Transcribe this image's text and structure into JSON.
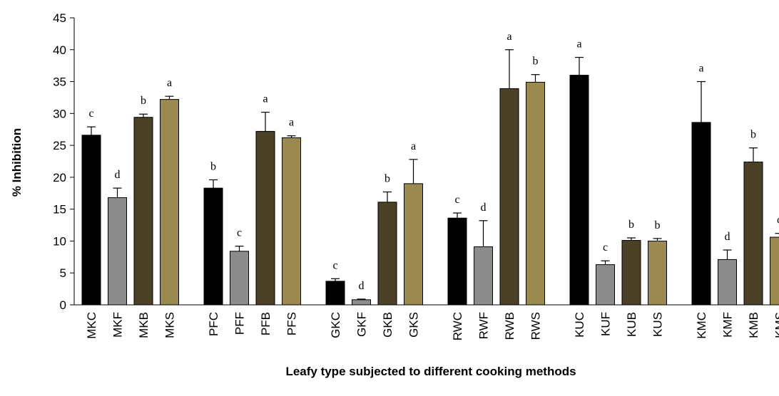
{
  "chart_data": {
    "type": "bar",
    "title": "",
    "xlabel": "Leafy type subjected to different cooking methods",
    "ylabel": "% Inhibition",
    "ylim": [
      0,
      45
    ],
    "yticks": [
      0,
      5,
      10,
      15,
      20,
      25,
      30,
      35,
      40,
      45
    ],
    "grid": false,
    "legend": "none",
    "colors": {
      "C": "#000000",
      "F": "#8c8c8c",
      "B": "#4a4127",
      "S": "#9a8a50"
    },
    "groups": [
      {
        "categories": [
          "MKC",
          "MKF",
          "MKB",
          "MKS"
        ],
        "values": [
          26.6,
          16.8,
          29.4,
          32.2
        ],
        "errors": [
          1.3,
          1.5,
          0.5,
          0.5
        ],
        "labels": [
          "c",
          "d",
          "b",
          "a"
        ]
      },
      {
        "categories": [
          "PFC",
          "PFF",
          "PFB",
          "PFS"
        ],
        "values": [
          18.3,
          8.4,
          27.2,
          26.2
        ],
        "errors": [
          1.3,
          0.8,
          3.0,
          0.3
        ],
        "labels": [
          "b",
          "c",
          "a",
          "a"
        ]
      },
      {
        "categories": [
          "GKC",
          "GKF",
          "GKB",
          "GKS"
        ],
        "values": [
          3.7,
          0.8,
          16.1,
          19.0
        ],
        "errors": [
          0.4,
          0.1,
          1.6,
          3.8
        ],
        "labels": [
          "c",
          "d",
          "b",
          "a"
        ]
      },
      {
        "categories": [
          "RWC",
          "RWF",
          "RWB",
          "RWS"
        ],
        "values": [
          13.6,
          9.1,
          33.9,
          34.9
        ],
        "errors": [
          0.8,
          4.1,
          6.1,
          1.2
        ],
        "labels": [
          "c",
          "d",
          "a",
          "b"
        ]
      },
      {
        "categories": [
          "KUC",
          "KUF",
          "KUB",
          "KUS"
        ],
        "values": [
          36.0,
          6.3,
          10.1,
          10.0
        ],
        "errors": [
          2.8,
          0.6,
          0.4,
          0.4
        ],
        "labels": [
          "a",
          "c",
          "b",
          "b"
        ]
      },
      {
        "categories": [
          "KMC",
          "KMF",
          "KMB",
          "KMS"
        ],
        "values": [
          28.6,
          7.1,
          22.4,
          10.6
        ],
        "errors": [
          6.4,
          1.5,
          2.2,
          0.6
        ],
        "labels": [
          "a",
          "d",
          "b",
          "c"
        ]
      }
    ]
  }
}
